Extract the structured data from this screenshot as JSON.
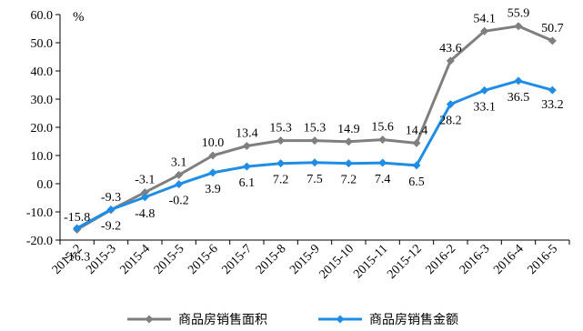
{
  "chart_data": {
    "type": "line",
    "unit": "%",
    "categories": [
      "2015-2",
      "2015-3",
      "2015-4",
      "2015-5",
      "2015-6",
      "2015-7",
      "2015-8",
      "2015-9",
      "2015-10",
      "2015-11",
      "2015-12",
      "2016-2",
      "2016-3",
      "2016-4",
      "2016-5"
    ],
    "series": [
      {
        "name": "商品房销售面积",
        "color": "#7f7f7f",
        "values": [
          -16.3,
          -9.3,
          -3.1,
          3.1,
          10.0,
          13.4,
          15.3,
          15.3,
          14.9,
          15.6,
          14.4,
          43.6,
          54.1,
          55.9,
          50.7
        ],
        "labels": [
          "-16.3",
          "-9.3",
          "-3.1",
          "3.1",
          "10.0",
          "13.4",
          "15.3",
          "15.3",
          "14.9",
          "15.6",
          "14.4",
          "43.6",
          "54.1",
          "55.9",
          "50.7"
        ]
      },
      {
        "name": "商品房销售金额",
        "color": "#1f8ce6",
        "values": [
          -15.8,
          -9.2,
          -4.8,
          -0.2,
          3.9,
          6.1,
          7.2,
          7.5,
          7.2,
          7.4,
          6.5,
          28.2,
          33.1,
          36.5,
          33.2
        ],
        "labels": [
          "-15.8",
          "-9.2",
          "-4.8",
          "-0.2",
          "3.9",
          "6.1",
          "7.2",
          "7.5",
          "7.2",
          "7.4",
          "6.5",
          "28.2",
          "33.1",
          "36.5",
          "33.2"
        ]
      }
    ],
    "ylim": [
      -20,
      60
    ],
    "yticks": [
      "60.0",
      "50.0",
      "40.0",
      "30.0",
      "20.0",
      "10.0",
      "0.0",
      "-10.0",
      "-20.0"
    ],
    "grid": false,
    "legend_position": "bottom"
  }
}
